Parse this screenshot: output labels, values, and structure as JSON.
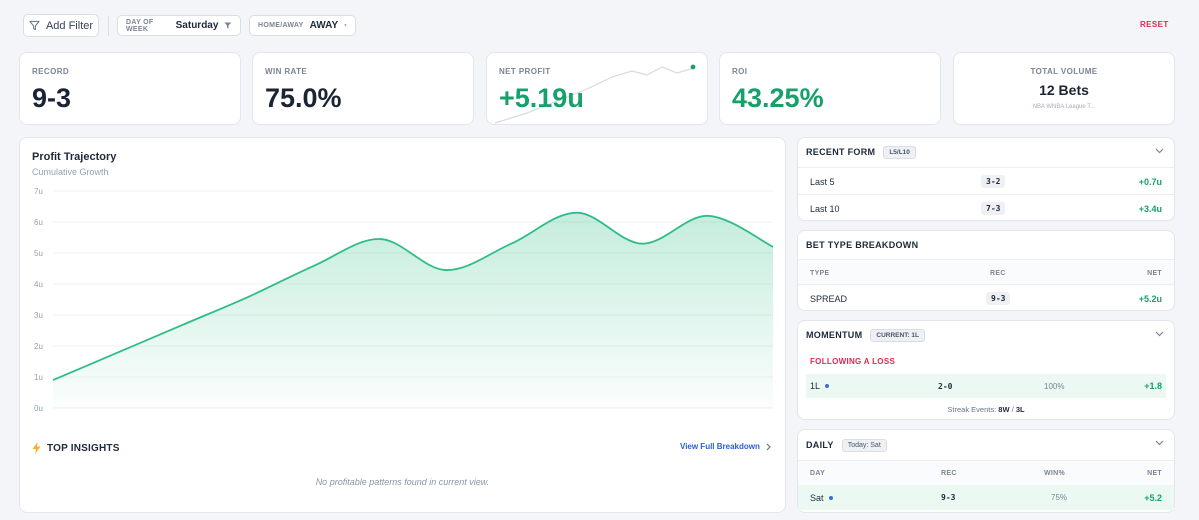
{
  "filters": {
    "add_label": "Add Filter",
    "chips": [
      {
        "label": "DAY OF WEEK",
        "value": "Saturday"
      },
      {
        "label": "HOME/AWAY",
        "value": "AWAY"
      }
    ],
    "reset_label": "RESET"
  },
  "stats": {
    "record": {
      "label": "RECORD",
      "value": "9-3"
    },
    "win_rate": {
      "label": "WIN RATE",
      "value": "75.0%"
    },
    "net_profit": {
      "label": "NET PROFIT",
      "value": "+5.19u"
    },
    "roi": {
      "label": "ROI",
      "value": "43.25%"
    },
    "volume": {
      "label": "TOTAL VOLUME",
      "value": "12 Bets",
      "leagues": "NBA WNBA League T..."
    }
  },
  "chart": {
    "title": "Profit Trajectory",
    "subtitle": "Cumulative Growth"
  },
  "chart_data": {
    "type": "area",
    "title": "Profit Trajectory",
    "subtitle": "Cumulative Growth",
    "x": [
      0,
      1,
      2,
      3,
      4,
      5,
      6,
      7,
      8,
      9,
      10,
      11
    ],
    "series": [
      {
        "values": [
          0.9,
          1.8,
          2.7,
          3.6,
          4.6,
          5.45,
          4.45,
          5.3,
          6.3,
          5.3,
          6.2,
          5.2
        ]
      }
    ],
    "yticks": [
      "0u",
      "1u",
      "2u",
      "3u",
      "4u",
      "5u",
      "6u",
      "7u"
    ],
    "ylim": [
      0,
      7
    ],
    "grid": true,
    "color": "#2ebd85"
  },
  "insights": {
    "title": "TOP INSIGHTS",
    "link": "View Full Breakdown",
    "empty": "No profitable patterns found in current view."
  },
  "recent_form": {
    "title": "RECENT FORM",
    "badge": "L5/L10",
    "rows": [
      {
        "label": "Last 5",
        "rec": "3-2",
        "net": "+0.7u"
      },
      {
        "label": "Last 10",
        "rec": "7-3",
        "net": "+3.4u"
      }
    ]
  },
  "bet_type": {
    "title": "BET TYPE BREAKDOWN",
    "headers": {
      "type": "TYPE",
      "rec": "REC",
      "net": "NET"
    },
    "rows": [
      {
        "type": "SPREAD",
        "rec": "9-3",
        "net": "+5.2u"
      }
    ]
  },
  "momentum": {
    "title": "MOMENTUM",
    "badge": "CURRENT: 1L",
    "section": "FOLLOWING A LOSS",
    "row": {
      "label": "1L",
      "rec": "2-0",
      "pct": "100%",
      "net": "+1.8"
    },
    "streak_label": "Streak Events:",
    "streak_w": "8W",
    "streak_sep": "/",
    "streak_l": "3L"
  },
  "daily": {
    "title": "DAILY",
    "badge": "Today: Sat",
    "headers": {
      "day": "DAY",
      "rec": "REC",
      "win": "WIN%",
      "net": "NET"
    },
    "row": {
      "day": "Sat",
      "rec": "9-3",
      "win": "75%",
      "net": "+5.2"
    }
  },
  "colors": {
    "accent_green": "#16a06a",
    "reset_red": "#e0294f",
    "link_blue": "#2a60d0"
  }
}
